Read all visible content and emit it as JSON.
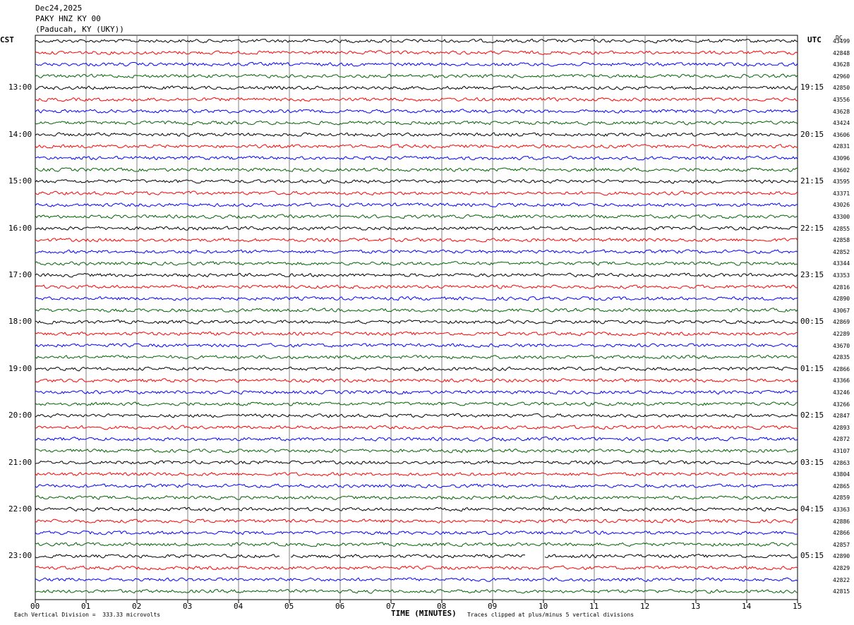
{
  "header": {
    "date": "Dec24,2025",
    "station": "PAKY HNZ KY 00",
    "location": "(Paducah, KY (UKY))"
  },
  "labels": {
    "left_tz": "CST",
    "right_tz": "UTC",
    "dc_label": "DC"
  },
  "footer": {
    "xlabel": "TIME (MINUTES)",
    "scale_note": "Each Vertical Division =  333.33 microvolts",
    "clip_note": "Traces clipped at plus/minus 5 vertical divisions"
  },
  "colors": {
    "cycle": [
      "#000000",
      "#ff0000",
      "#0000ff",
      "#006400"
    ],
    "grid": "#808080"
  },
  "chart_data": {
    "type": "line",
    "subtype": "helicorder",
    "x_range": [
      0,
      15
    ],
    "x_ticks": [
      "00",
      "01",
      "02",
      "03",
      "04",
      "05",
      "06",
      "07",
      "08",
      "09",
      "10",
      "11",
      "12",
      "13",
      "14",
      "15"
    ],
    "traces_per_hour": 4,
    "minutes_per_trace": 15,
    "trace_count": 48,
    "left_hour_labels": [
      "13:00",
      "14:00",
      "15:00",
      "16:00",
      "17:00",
      "18:00",
      "19:00",
      "20:00",
      "21:00",
      "22:00",
      "23:00"
    ],
    "right_hour_labels": [
      "19:15",
      "20:15",
      "21:15",
      "22:15",
      "23:15",
      "00:15",
      "01:15",
      "02:15",
      "03:15",
      "04:15",
      "05:15"
    ],
    "dc_offsets": [
      "43499",
      "42848",
      "43628",
      "42960",
      "42850",
      "43556",
      "43628",
      "43424",
      "43606",
      "42831",
      "43096",
      "43602",
      "43595",
      "43371",
      "43026",
      "43300",
      "42855",
      "42858",
      "42852",
      "43344",
      "43353",
      "42816",
      "42890",
      "43067",
      "42869",
      "42289",
      "43670",
      "42835",
      "42866",
      "43366",
      "43246",
      "43266",
      "42847",
      "42893",
      "42872",
      "43107",
      "42863",
      "43804",
      "42865",
      "42859",
      "43363",
      "42886",
      "42866",
      "42857",
      "42890",
      "42829",
      "42822",
      "42815"
    ],
    "gaps": [
      {
        "trace": 44,
        "from_min": 4.82,
        "to_min": 5.02
      },
      {
        "trace": 44,
        "from_min": 9.65,
        "to_min": 10.02
      }
    ]
  }
}
